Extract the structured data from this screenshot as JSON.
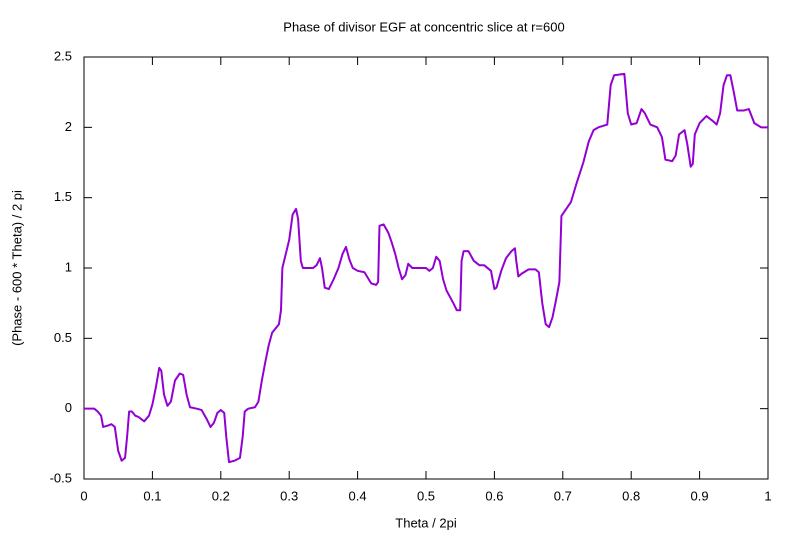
{
  "chart_data": {
    "type": "line",
    "title": "Phase of divisor EGF at concentric slice at r=600",
    "xlabel": "Theta / 2pi",
    "ylabel": "(Phase - 600 * Theta) / 2 pi",
    "xlim": [
      0,
      1
    ],
    "ylim": [
      -0.5,
      2.5
    ],
    "xticks": [
      0,
      0.1,
      0.2,
      0.3,
      0.4,
      0.5,
      0.6,
      0.7,
      0.8,
      0.9,
      1
    ],
    "yticks": [
      -0.5,
      0,
      0.5,
      1,
      1.5,
      2,
      2.5
    ],
    "grid": false,
    "series": [
      {
        "color": "#9400d3",
        "x": [
          0,
          0.015,
          0.02,
          0.025,
          0.028,
          0.035,
          0.04,
          0.045,
          0.05,
          0.055,
          0.06,
          0.063,
          0.066,
          0.07,
          0.075,
          0.08,
          0.088,
          0.095,
          0.1,
          0.105,
          0.11,
          0.113,
          0.117,
          0.122,
          0.127,
          0.133,
          0.14,
          0.145,
          0.15,
          0.155,
          0.165,
          0.172,
          0.18,
          0.185,
          0.19,
          0.195,
          0.2,
          0.205,
          0.208,
          0.212,
          0.22,
          0.228,
          0.232,
          0.235,
          0.24,
          0.25,
          0.255,
          0.26,
          0.265,
          0.27,
          0.275,
          0.28,
          0.285,
          0.288,
          0.29,
          0.295,
          0.3,
          0.305,
          0.31,
          0.313,
          0.317,
          0.32,
          0.335,
          0.34,
          0.345,
          0.348,
          0.352,
          0.358,
          0.365,
          0.372,
          0.378,
          0.383,
          0.388,
          0.393,
          0.4,
          0.41,
          0.415,
          0.42,
          0.427,
          0.43,
          0.432,
          0.438,
          0.445,
          0.45,
          0.455,
          0.46,
          0.465,
          0.47,
          0.474,
          0.48,
          0.5,
          0.505,
          0.51,
          0.515,
          0.52,
          0.525,
          0.53,
          0.54,
          0.545,
          0.55,
          0.552,
          0.555,
          0.562,
          0.57,
          0.578,
          0.585,
          0.595,
          0.6,
          0.603,
          0.61,
          0.617,
          0.625,
          0.63,
          0.632,
          0.635,
          0.64,
          0.65,
          0.66,
          0.665,
          0.67,
          0.675,
          0.68,
          0.685,
          0.69,
          0.695,
          0.698,
          0.705,
          0.712,
          0.72,
          0.73,
          0.738,
          0.745,
          0.752,
          0.765,
          0.77,
          0.775,
          0.79,
          0.795,
          0.8,
          0.808,
          0.815,
          0.82,
          0.828,
          0.838,
          0.845,
          0.85,
          0.86,
          0.865,
          0.87,
          0.878,
          0.882,
          0.887,
          0.89,
          0.893,
          0.9,
          0.91,
          0.918,
          0.925,
          0.93,
          0.935,
          0.94,
          0.945,
          0.95,
          0.955,
          0.965,
          0.972,
          0.98,
          0.99,
          1
        ],
        "values": [
          0,
          0,
          -0.02,
          -0.05,
          -0.13,
          -0.12,
          -0.11,
          -0.13,
          -0.3,
          -0.37,
          -0.35,
          -0.2,
          -0.02,
          -0.02,
          -0.05,
          -0.06,
          -0.09,
          -0.05,
          0.03,
          0.15,
          0.29,
          0.27,
          0.1,
          0.02,
          0.05,
          0.2,
          0.25,
          0.24,
          0.1,
          0.01,
          0,
          -0.01,
          -0.08,
          -0.13,
          -0.1,
          -0.03,
          -0.01,
          -0.03,
          -0.2,
          -0.38,
          -0.37,
          -0.35,
          -0.2,
          -0.02,
          0,
          0.01,
          0.05,
          0.2,
          0.33,
          0.45,
          0.54,
          0.57,
          0.6,
          0.7,
          1.0,
          1.1,
          1.2,
          1.38,
          1.42,
          1.35,
          1.05,
          1.0,
          1.0,
          1.02,
          1.07,
          1.0,
          0.86,
          0.85,
          0.92,
          1.0,
          1.1,
          1.15,
          1.06,
          1.0,
          0.98,
          0.97,
          0.93,
          0.89,
          0.88,
          0.9,
          1.3,
          1.31,
          1.25,
          1.18,
          1.1,
          1.0,
          0.92,
          0.95,
          1.03,
          1.0,
          1.0,
          0.98,
          1.0,
          1.08,
          1.05,
          0.92,
          0.84,
          0.75,
          0.7,
          0.7,
          1.05,
          1.12,
          1.12,
          1.05,
          1.02,
          1.02,
          0.98,
          0.85,
          0.86,
          0.98,
          1.07,
          1.12,
          1.14,
          1.05,
          0.94,
          0.96,
          0.99,
          0.99,
          0.97,
          0.75,
          0.6,
          0.58,
          0.65,
          0.77,
          0.9,
          1.37,
          1.42,
          1.47,
          1.6,
          1.75,
          1.9,
          1.98,
          2.0,
          2.02,
          2.3,
          2.37,
          2.38,
          2.1,
          2.02,
          2.03,
          2.13,
          2.1,
          2.02,
          2.0,
          1.93,
          1.77,
          1.76,
          1.8,
          1.95,
          1.98,
          1.88,
          1.72,
          1.74,
          1.95,
          2.03,
          2.08,
          2.05,
          2.02,
          2.1,
          2.3,
          2.37,
          2.37,
          2.25,
          2.12,
          2.12,
          2.13,
          2.03,
          2.0,
          2.0
        ]
      }
    ]
  }
}
